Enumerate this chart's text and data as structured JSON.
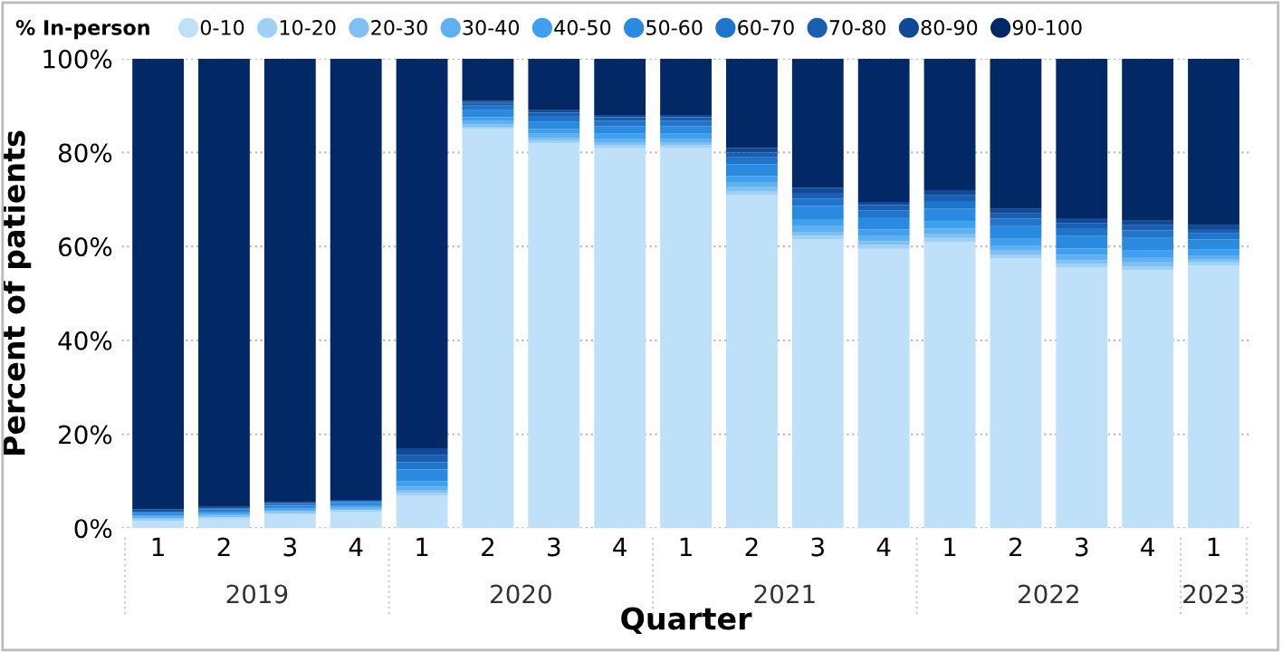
{
  "chart_data": {
    "type": "bar",
    "stacked": true,
    "xlabel": "Quarter",
    "ylabel": "Percent of patients",
    "legend_title": "% In-person",
    "legend": "top left",
    "grid": "y",
    "categories": [
      "1",
      "2",
      "3",
      "4",
      "1",
      "2",
      "3",
      "4",
      "1",
      "2",
      "3",
      "4",
      "1",
      "2",
      "3",
      "4",
      "1"
    ],
    "annotations": [
      "2019",
      "2020",
      "2021",
      "2022",
      "2023"
    ],
    "ylim": [
      0,
      100
    ],
    "yticks": [
      {
        "value": 0,
        "label": "0%"
      },
      {
        "value": 20,
        "label": "20%"
      },
      {
        "value": 40,
        "label": "40%"
      },
      {
        "value": 60,
        "label": "60%"
      },
      {
        "value": 80,
        "label": "80%"
      },
      {
        "value": 100,
        "label": "100%"
      }
    ],
    "series": [
      {
        "name": "0-10",
        "color": "#bfe0f9",
        "values": [
          1.5,
          2,
          3,
          3.5,
          7,
          85,
          82,
          81,
          81,
          71,
          61.5,
          59.5,
          61,
          57.5,
          55.5,
          55,
          56
        ]
      },
      {
        "name": "10-20",
        "color": "#9fd0f6",
        "values": [
          0.3,
          0.3,
          0.3,
          0.3,
          0.5,
          0.5,
          0.6,
          0.6,
          0.6,
          0.8,
          0.8,
          0.8,
          0.8,
          0.8,
          0.8,
          0.8,
          0.6
        ]
      },
      {
        "name": "20-30",
        "color": "#7ec0f4",
        "values": [
          0.3,
          0.3,
          0.3,
          0.3,
          0.5,
          0.5,
          0.6,
          0.6,
          0.6,
          0.8,
          0.8,
          0.8,
          0.8,
          0.8,
          0.8,
          0.8,
          0.6
        ]
      },
      {
        "name": "30-40",
        "color": "#5eb0f1",
        "values": [
          0.3,
          0.3,
          0.3,
          0.3,
          0.8,
          0.7,
          0.8,
          0.8,
          0.8,
          1,
          1.2,
          1.1,
          1.2,
          1.1,
          1.1,
          1.1,
          0.9
        ]
      },
      {
        "name": "40-50",
        "color": "#3ea0ee",
        "values": [
          0.3,
          0.3,
          0.3,
          0.3,
          1.2,
          0.8,
          1,
          1,
          1,
          1.4,
          1.5,
          1.4,
          1.5,
          1.4,
          1.4,
          1.4,
          1.2
        ]
      },
      {
        "name": "50-60",
        "color": "#2a8ae0",
        "values": [
          0.5,
          0.5,
          0.6,
          0.6,
          2.5,
          1.5,
          1.6,
          1.6,
          1.6,
          2.5,
          2.8,
          2.6,
          2.8,
          2.7,
          2.7,
          2.7,
          2.2
        ]
      },
      {
        "name": "60-70",
        "color": "#1f74cc",
        "values": [
          0.3,
          0.3,
          0.3,
          0.3,
          1.5,
          1,
          1.2,
          1.2,
          1.2,
          1.5,
          1.6,
          1.5,
          1.6,
          1.6,
          1.6,
          1.6,
          1.3
        ]
      },
      {
        "name": "70-80",
        "color": "#185fb3",
        "values": [
          0.2,
          0.2,
          0.2,
          0.2,
          1.5,
          0.6,
          0.7,
          0.7,
          0.7,
          1,
          1.2,
          1.1,
          1.2,
          1.1,
          1.1,
          1.1,
          0.9
        ]
      },
      {
        "name": "80-90",
        "color": "#0f4a98",
        "values": [
          0.3,
          0.3,
          0.2,
          0.2,
          1.5,
          0.4,
          0.5,
          0.5,
          0.5,
          1,
          1.1,
          0.7,
          1.1,
          1,
          1,
          1,
          0.8
        ]
      },
      {
        "name": "90-100",
        "color": "#022865",
        "values": [
          96,
          95.5,
          94.5,
          94,
          83,
          9,
          11,
          12,
          12,
          19,
          27.5,
          30.5,
          28,
          32,
          34,
          34.5,
          35.5
        ]
      }
    ]
  }
}
